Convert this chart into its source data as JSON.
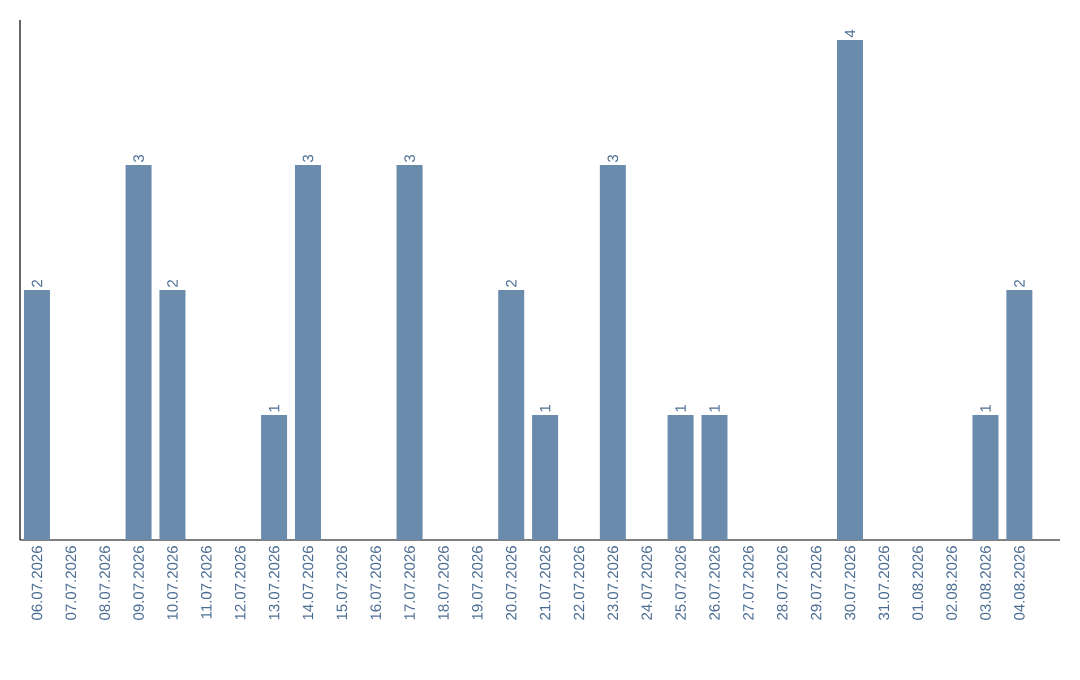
{
  "chart_data": {
    "type": "bar",
    "categories": [
      "06.07.2026",
      "07.07.2026",
      "08.07.2026",
      "09.07.2026",
      "10.07.2026",
      "11.07.2026",
      "12.07.2026",
      "13.07.2026",
      "14.07.2026",
      "15.07.2026",
      "16.07.2026",
      "17.07.2026",
      "18.07.2026",
      "19.07.2026",
      "20.07.2026",
      "21.07.2026",
      "22.07.2026",
      "23.07.2026",
      "24.07.2026",
      "25.07.2026",
      "26.07.2026",
      "27.07.2026",
      "28.07.2026",
      "29.07.2026",
      "30.07.2026",
      "31.07.2026",
      "01.08.2026",
      "02.08.2026",
      "03.08.2026",
      "04.08.2026"
    ],
    "values": [
      2,
      0,
      0,
      3,
      2,
      0,
      0,
      1,
      3,
      0,
      0,
      3,
      0,
      0,
      2,
      1,
      0,
      3,
      0,
      1,
      1,
      0,
      0,
      0,
      4,
      0,
      0,
      0,
      1,
      2
    ],
    "value_labels": [
      "2",
      null,
      null,
      "3",
      "2",
      null,
      null,
      "1",
      "3",
      null,
      null,
      "3",
      null,
      null,
      "2",
      "1",
      null,
      "3",
      null,
      "1",
      "1",
      null,
      null,
      null,
      "4",
      null,
      null,
      null,
      "1",
      "2"
    ],
    "color": "#6a8bab",
    "tick_labels": "x"
  }
}
